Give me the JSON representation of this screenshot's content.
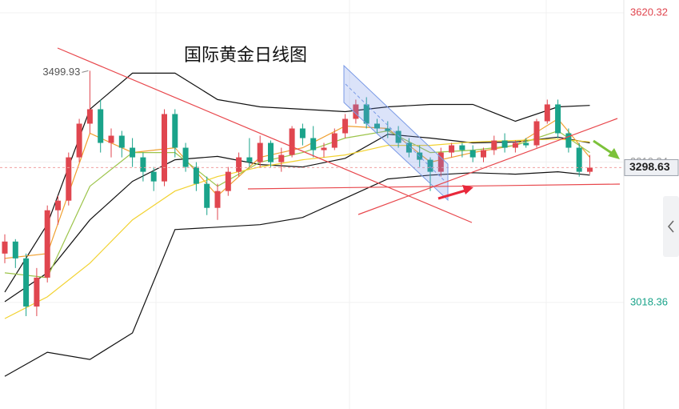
{
  "chart_data": {
    "type": "candlestick",
    "title": "国际黄金日线图",
    "ylim": [
      2797,
      3647
    ],
    "yticks": [
      3620.32,
      3310.34,
      3018.36
    ],
    "ytick_colors": [
      "#e0464f",
      "#9a9a9a",
      "#1aa38a"
    ],
    "grid": true,
    "up_color": "#e0464f",
    "down_color": "#1aa38a",
    "open": [
      3120,
      3145,
      3110,
      3010,
      3070,
      3210,
      3230,
      3320,
      3390,
      3420,
      3350,
      3365,
      3340,
      3320,
      3290,
      3270,
      3410,
      3340,
      3300,
      3265,
      3215,
      3250,
      3290,
      3320,
      3310,
      3350,
      3310,
      3325,
      3380,
      3360,
      3335,
      3340,
      3370,
      3400,
      3430,
      3390,
      3380,
      3375,
      3350,
      3330,
      3315,
      3290,
      3330,
      3345,
      3335,
      3320,
      3335,
      3355,
      3340,
      3350,
      3345,
      3395,
      3430,
      3370,
      3340,
      3290
    ],
    "high": [
      3160,
      3150,
      3120,
      3090,
      3220,
      3240,
      3330,
      3400,
      3499.93,
      3440,
      3380,
      3375,
      3360,
      3330,
      3300,
      3420,
      3420,
      3350,
      3310,
      3280,
      3265,
      3300,
      3330,
      3360,
      3365,
      3355,
      3340,
      3385,
      3390,
      3385,
      3350,
      3380,
      3410,
      3440,
      3445,
      3400,
      3395,
      3385,
      3360,
      3345,
      3320,
      3340,
      3350,
      3350,
      3345,
      3340,
      3365,
      3370,
      3355,
      3360,
      3400,
      3440,
      3440,
      3380,
      3350,
      3325
    ],
    "low": [
      3100,
      3090,
      2990,
      2990,
      3060,
      3180,
      3220,
      3310,
      3370,
      3330,
      3320,
      3320,
      3300,
      3270,
      3250,
      3260,
      3320,
      3290,
      3250,
      3200,
      3190,
      3240,
      3280,
      3300,
      3300,
      3300,
      3290,
      3320,
      3345,
      3320,
      3320,
      3335,
      3360,
      3390,
      3380,
      3370,
      3360,
      3340,
      3320,
      3300,
      3250,
      3280,
      3320,
      3320,
      3310,
      3310,
      3325,
      3330,
      3330,
      3340,
      3340,
      3390,
      3360,
      3330,
      3280,
      3285
    ],
    "close": [
      3145,
      3110,
      3010,
      3070,
      3210,
      3230,
      3320,
      3390,
      3420,
      3350,
      3365,
      3340,
      3320,
      3290,
      3270,
      3410,
      3340,
      3300,
      3265,
      3215,
      3250,
      3290,
      3320,
      3310,
      3350,
      3310,
      3325,
      3380,
      3360,
      3335,
      3340,
      3370,
      3400,
      3430,
      3390,
      3380,
      3375,
      3350,
      3330,
      3315,
      3290,
      3330,
      3345,
      3335,
      3320,
      3335,
      3355,
      3340,
      3350,
      3345,
      3395,
      3430,
      3370,
      3340,
      3290,
      3298.63
    ],
    "lines": [
      {
        "color": "#111111",
        "x": [
          0,
          4,
          8,
          12,
          16,
          20,
          24,
          28,
          32,
          36,
          40,
          44,
          48,
          52,
          55
        ],
        "values": [
          3040,
          3181,
          3420,
          3495,
          3495,
          3440,
          3425,
          3420,
          3415,
          3425,
          3430,
          3430,
          3395,
          3425,
          3428
        ]
      },
      {
        "color": "#111111",
        "x": [
          0,
          4,
          8,
          12,
          16,
          20,
          24,
          28,
          32,
          36,
          40,
          44,
          48,
          52,
          55
        ],
        "values": [
          3020,
          3080,
          3190,
          3270,
          3315,
          3322,
          3305,
          3300,
          3318,
          3368,
          3360,
          3350,
          3352,
          3362,
          3350
        ]
      },
      {
        "color": "#111111",
        "x": [
          0,
          4,
          8,
          12,
          16,
          20,
          24,
          28,
          32,
          36,
          40,
          44,
          48,
          52,
          55
        ],
        "values": [
          2865,
          2915,
          2900,
          2955,
          3170,
          3175,
          3180,
          3195,
          3235,
          3275,
          3283,
          3288,
          3285,
          3290,
          3283
        ]
      },
      {
        "color": "#f0a030",
        "x": [
          0,
          4,
          8,
          12,
          16,
          20,
          24,
          28,
          32,
          36,
          40,
          44,
          48,
          52,
          55
        ],
        "values": [
          3110,
          3120,
          3370,
          3330,
          3340,
          3240,
          3320,
          3340,
          3385,
          3380,
          3310,
          3330,
          3345,
          3400,
          3320
        ]
      },
      {
        "color": "#9cc44a",
        "x": [
          0,
          4,
          8,
          12,
          16,
          20,
          24,
          28,
          32,
          36,
          40,
          44,
          48,
          52,
          55
        ],
        "values": [
          3080,
          3070,
          3260,
          3330,
          3330,
          3260,
          3310,
          3330,
          3360,
          3375,
          3330,
          3335,
          3345,
          3375,
          3330
        ]
      },
      {
        "color": "#f2d230",
        "x": [
          0,
          4,
          8,
          12,
          16,
          20,
          24,
          28,
          32,
          36,
          40,
          44,
          48,
          52,
          55
        ],
        "values": [
          2985,
          3030,
          3100,
          3190,
          3250,
          3280,
          3300,
          3315,
          3325,
          3345,
          3345,
          3352,
          3355,
          3358,
          3352
        ]
      }
    ]
  }
}
